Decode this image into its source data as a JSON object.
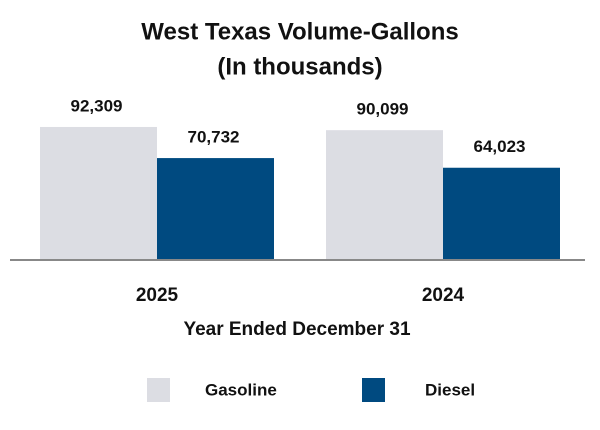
{
  "chart_data": {
    "type": "bar",
    "title": "West Texas Volume-Gallons",
    "subtitle": "(In thousands)",
    "x_label": "Year Ended December 31",
    "categories": [
      "2025",
      "2024"
    ],
    "series": [
      {
        "name": "Gasoline",
        "color": "#dcdde3",
        "values": [
          92309,
          90099
        ],
        "value_labels": [
          "92,309",
          "90,099"
        ]
      },
      {
        "name": "Diesel",
        "color": "#004a80",
        "values": [
          70732,
          64023
        ],
        "value_labels": [
          "70,732",
          "64,023"
        ]
      }
    ]
  }
}
